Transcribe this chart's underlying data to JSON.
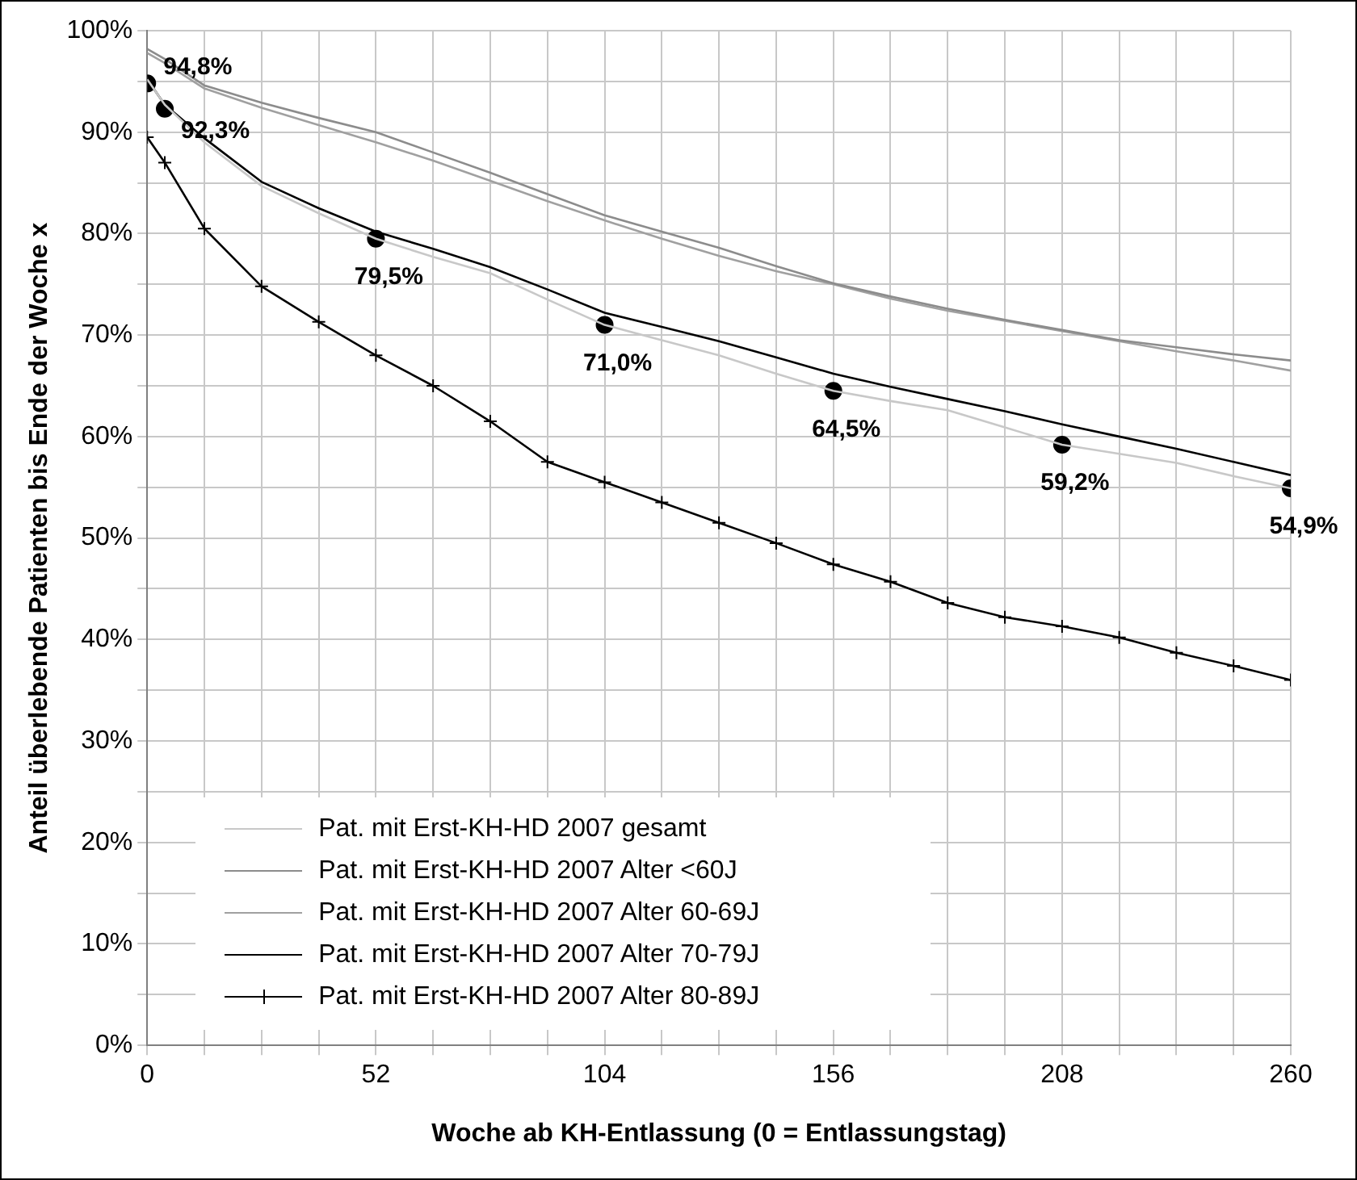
{
  "chart_data": {
    "type": "line",
    "xlabel": "Woche ab KH-Entlassung (0 = Entlassungstag)",
    "ylabel": "Anteil überlebende Patienten bis Ende der Woche x",
    "xlim": [
      0,
      260
    ],
    "xticks": [
      {
        "value": 0,
        "label": "0"
      },
      {
        "value": 13,
        "label": null
      },
      {
        "value": 26,
        "label": null
      },
      {
        "value": 39,
        "label": null
      },
      {
        "value": 52,
        "label": "52"
      },
      {
        "value": 65,
        "label": null
      },
      {
        "value": 78,
        "label": null
      },
      {
        "value": 91,
        "label": null
      },
      {
        "value": 104,
        "label": "104"
      },
      {
        "value": 117,
        "label": null
      },
      {
        "value": 130,
        "label": null
      },
      {
        "value": 143,
        "label": null
      },
      {
        "value": 156,
        "label": "156"
      },
      {
        "value": 169,
        "label": null
      },
      {
        "value": 182,
        "label": null
      },
      {
        "value": 195,
        "label": null
      },
      {
        "value": 208,
        "label": "208"
      },
      {
        "value": 221,
        "label": null
      },
      {
        "value": 234,
        "label": null
      },
      {
        "value": 247,
        "label": null
      },
      {
        "value": 260,
        "label": "260"
      }
    ],
    "ylim": [
      0,
      100
    ],
    "yticks": [
      {
        "value": 0,
        "label": "0%"
      },
      {
        "value": 5,
        "label": null
      },
      {
        "value": 10,
        "label": "10%"
      },
      {
        "value": 15,
        "label": null
      },
      {
        "value": 20,
        "label": "20%"
      },
      {
        "value": 25,
        "label": null
      },
      {
        "value": 30,
        "label": "30%"
      },
      {
        "value": 35,
        "label": null
      },
      {
        "value": 40,
        "label": "40%"
      },
      {
        "value": 45,
        "label": null
      },
      {
        "value": 50,
        "label": "50%"
      },
      {
        "value": 55,
        "label": null
      },
      {
        "value": 60,
        "label": "60%"
      },
      {
        "value": 65,
        "label": null
      },
      {
        "value": 70,
        "label": "70%"
      },
      {
        "value": 75,
        "label": null
      },
      {
        "value": 80,
        "label": "80%"
      },
      {
        "value": 85,
        "label": null
      },
      {
        "value": 90,
        "label": "90%"
      },
      {
        "value": 95,
        "label": null
      },
      {
        "value": 100,
        "label": "100%"
      }
    ],
    "grid": true,
    "legend": "bottom left",
    "x": [
      0,
      4,
      13,
      26,
      39,
      52,
      65,
      78,
      91,
      104,
      117,
      130,
      143,
      156,
      169,
      182,
      195,
      208,
      221,
      234,
      247,
      260
    ],
    "series": [
      {
        "name": "Pat. mit Erst-KH-HD 2007 gesamt",
        "color": "#c8c8c8",
        "marker": "none",
        "values": [
          95.2,
          92.7,
          89.0,
          84.7,
          82.0,
          79.5,
          77.7,
          76.1,
          73.5,
          71.0,
          69.5,
          68.0,
          66.2,
          64.5,
          63.5,
          62.6,
          60.9,
          59.2,
          58.3,
          57.4,
          56.1,
          54.9
        ]
      },
      {
        "name": "Pat. mit Erst-KH-HD 2007 Alter <60J",
        "color": "#8c8c8c",
        "marker": "none",
        "values": [
          98.2,
          97.2,
          94.6,
          92.9,
          91.4,
          90.0,
          88.0,
          86.0,
          83.9,
          81.8,
          80.2,
          78.6,
          76.8,
          75.1,
          73.8,
          72.6,
          71.5,
          70.5,
          69.5,
          68.8,
          68.1,
          67.5
        ]
      },
      {
        "name": "Pat. mit Erst-KH-HD 2007 Alter 60-69J",
        "color": "#a0a0a0",
        "marker": "none",
        "values": [
          97.8,
          96.8,
          94.3,
          92.4,
          90.7,
          89.0,
          87.2,
          85.2,
          83.2,
          81.3,
          79.5,
          77.8,
          76.3,
          75.0,
          73.6,
          72.4,
          71.4,
          70.4,
          69.4,
          68.4,
          67.5,
          66.5
        ]
      },
      {
        "name": "Pat. mit Erst-KH-HD 2007 Alter 70-79J",
        "color": "#000000",
        "marker": "none",
        "values": [
          95.2,
          92.7,
          89.4,
          85.1,
          82.5,
          80.2,
          78.5,
          76.7,
          74.5,
          72.2,
          70.8,
          69.4,
          67.8,
          66.2,
          64.9,
          63.7,
          62.5,
          61.2,
          60.0,
          58.8,
          57.5,
          56.2
        ]
      },
      {
        "name": "Pat. mit Erst-KH-HD 2007 Alter 80-89J",
        "color": "#000000",
        "marker": "cross",
        "values": [
          89.5,
          87.0,
          80.5,
          74.8,
          71.3,
          68.0,
          65.0,
          61.5,
          57.5,
          55.5,
          53.5,
          51.5,
          49.5,
          47.4,
          45.7,
          43.6,
          42.2,
          41.3,
          40.2,
          38.7,
          37.4,
          36.0
        ]
      },
      {
        "type": "scatter",
        "color": "#000000",
        "marker": "circle",
        "x": [
          0,
          4,
          52,
          104,
          156,
          208,
          260
        ],
        "values": [
          94.8,
          92.3,
          79.5,
          71.0,
          64.5,
          59.2,
          54.9
        ],
        "value_labels": [
          "94,8%",
          "92,3%",
          "79,5%",
          "71,0%",
          "64,5%",
          "59,2%",
          "54,9%"
        ]
      }
    ]
  }
}
